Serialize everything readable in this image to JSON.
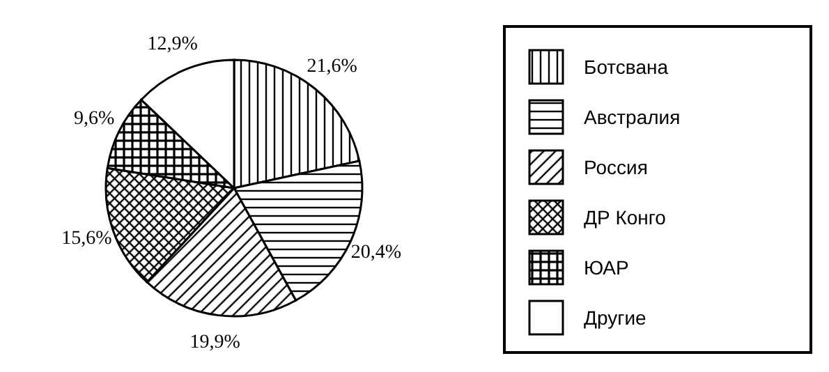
{
  "chart_data": {
    "type": "pie",
    "categories": [
      "Ботсвана",
      "Австралия",
      "Россия",
      "ДР Конго",
      "ЮАР",
      "Другие"
    ],
    "values": [
      21.6,
      20.4,
      19.9,
      15.6,
      9.6,
      12.9
    ],
    "value_labels": [
      "21,6%",
      "20,4%",
      "19,9%",
      "15,6%",
      "9,6%",
      "12,9%"
    ],
    "colors": [
      "#000000",
      "#000000",
      "#000000",
      "#000000",
      "#000000",
      "#000000"
    ],
    "legend": "right"
  }
}
